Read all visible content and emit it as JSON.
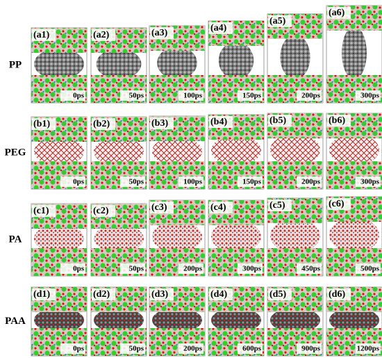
{
  "rows": [
    {
      "label": "PP",
      "panels": [
        {
          "id": "(a1)",
          "time": "0ps"
        },
        {
          "id": "(a2)",
          "time": "50ps"
        },
        {
          "id": "(a3)",
          "time": "100ps"
        },
        {
          "id": "(a4)",
          "time": "150ps"
        },
        {
          "id": "(a5)",
          "time": "200ps"
        },
        {
          "id": "(a6)",
          "time": "300ps"
        }
      ]
    },
    {
      "label": "PEG",
      "panels": [
        {
          "id": "(b1)",
          "time": "0ps"
        },
        {
          "id": "(b2)",
          "time": "50ps"
        },
        {
          "id": "(b3)",
          "time": "100ps"
        },
        {
          "id": "(b4)",
          "time": "150ps"
        },
        {
          "id": "(b5)",
          "time": "200ps"
        },
        {
          "id": "(b6)",
          "time": "300ps"
        }
      ]
    },
    {
      "label": "PA",
      "panels": [
        {
          "id": "(c1)",
          "time": "0ps"
        },
        {
          "id": "(c2)",
          "time": "50ps"
        },
        {
          "id": "(c3)",
          "time": "200ps"
        },
        {
          "id": "(c4)",
          "time": "300ps"
        },
        {
          "id": "(c5)",
          "time": "450ps"
        },
        {
          "id": "(c6)",
          "time": "500ps"
        }
      ]
    },
    {
      "label": "PAA",
      "panels": [
        {
          "id": "(d1)",
          "time": "0ps"
        },
        {
          "id": "(d2)",
          "time": "50ps"
        },
        {
          "id": "(d3)",
          "time": "200ps"
        },
        {
          "id": "(d4)",
          "time": "600ps"
        },
        {
          "id": "(d5)",
          "time": "900ps"
        },
        {
          "id": "(d6)",
          "time": "1200ps"
        }
      ]
    }
  ]
}
